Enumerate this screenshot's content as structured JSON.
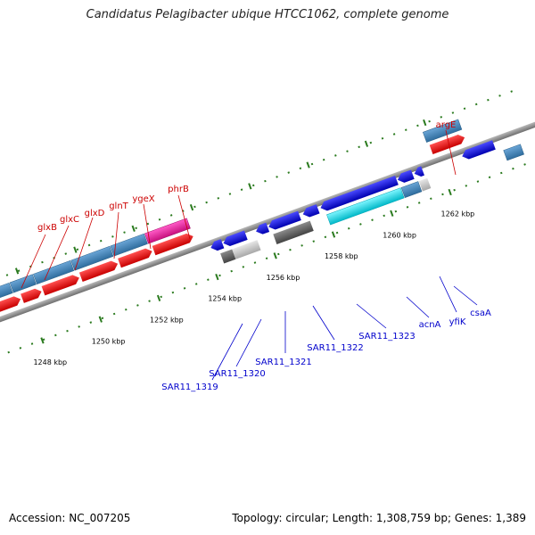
{
  "title": "Candidatus Pelagibacter ubique HTCC1062, complete genome",
  "footer": {
    "accession": "Accession: NC_007205",
    "stats": "Topology: circular; Length: 1,308,759 bp; Genes: 1,389"
  },
  "colors": {
    "forward_cds": "#ff0000",
    "reverse_cds": "#0000ff",
    "gene_block": "#4682b4",
    "special_gene": "#ee1c9c",
    "rna_gene": "#00e5ee",
    "pseudo_gene": "#666666",
    "light_gene": "#c8c8c8",
    "backbone": "#888888",
    "tick": "#2a7a1e",
    "label_forward": "#cc0000",
    "label_reverse": "#0000cc"
  },
  "scale": {
    "unit": "kbp",
    "ticks": [
      "1248 kbp",
      "1250 kbp",
      "1252 kbp",
      "1254 kbp",
      "1256 kbp",
      "1258 kbp",
      "1260 kbp",
      "1262 kbp"
    ]
  },
  "forward_labels": [
    "glxB",
    "glxC",
    "glxD",
    "glnT",
    "ygeX",
    "phrB",
    "argE"
  ],
  "reverse_labels": [
    "SAR11_1319",
    "SAR11_1320",
    "SAR11_1321",
    "SAR11_1322",
    "SAR11_1323",
    "acnA",
    "yfiK",
    "csaA"
  ]
}
